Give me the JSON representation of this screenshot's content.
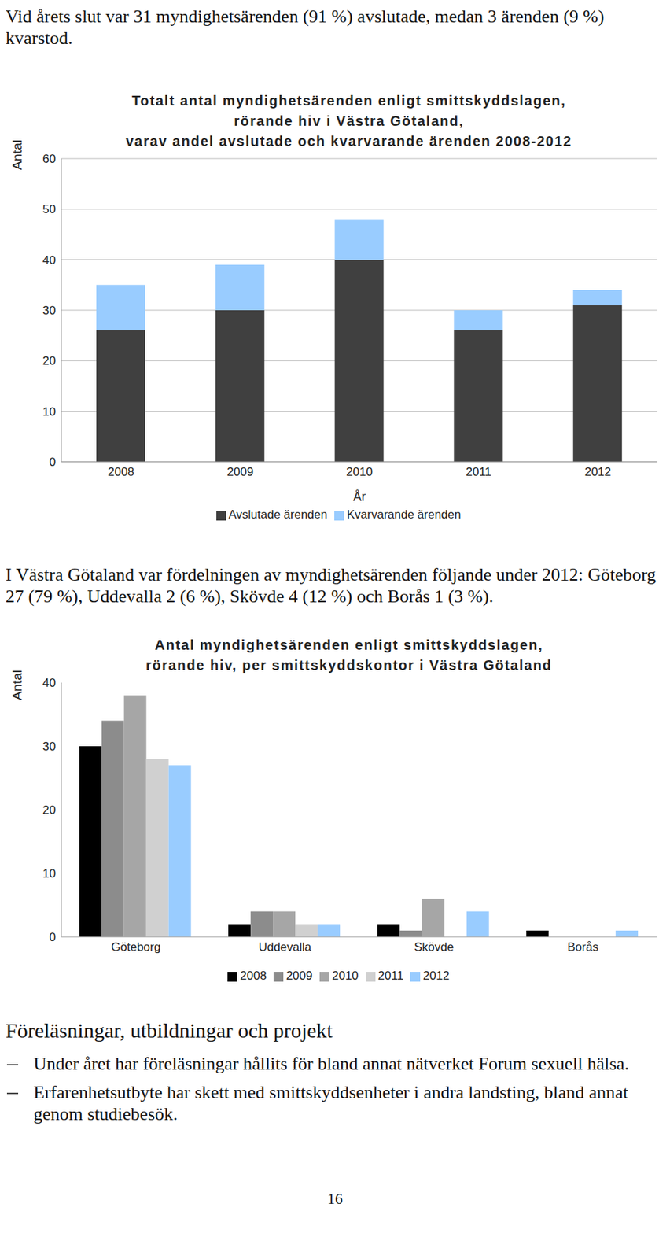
{
  "intro": "Vid årets slut var 31 myndighetsärenden (91 %) avslutade, medan 3 ärenden (9 %) kvarstod.",
  "chart_data": [
    {
      "type": "bar",
      "title": "Totalt antal myndighetsärenden enligt smittskyddslagen,\nrörande hiv i Västra Götaland,\nvarav andel avslutade och kvarvarande ärenden 2008-2012",
      "x_label": "År",
      "y_label": "Antal",
      "categories": [
        "2008",
        "2009",
        "2010",
        "2011",
        "2012"
      ],
      "series": [
        {
          "name": "Avslutade ärenden",
          "color": "#404040",
          "values": [
            26,
            30,
            40,
            26,
            31
          ]
        },
        {
          "name": "Kvarvarande ärenden",
          "color": "#99ccff",
          "values": [
            9,
            9,
            8,
            4,
            3
          ]
        }
      ],
      "stacked": true,
      "ylim": [
        0,
        60
      ],
      "yticks": [
        0,
        10,
        20,
        30,
        40,
        50,
        60
      ],
      "grid": true,
      "legend": "bottom"
    },
    {
      "type": "bar",
      "title": "Antal myndighetsärenden enligt smittskyddslagen,\nrörande hiv, per smittskyddskontor i Västra Götaland",
      "y_label": "Antal",
      "categories": [
        "Göteborg",
        "Uddevalla",
        "Skövde",
        "Borås"
      ],
      "series": [
        {
          "name": "2008",
          "color": "#000000",
          "values": [
            30,
            2,
            2,
            1
          ]
        },
        {
          "name": "2009",
          "color": "#8c8c8c",
          "values": [
            34,
            4,
            1,
            0
          ]
        },
        {
          "name": "2010",
          "color": "#a6a6a6",
          "values": [
            38,
            4,
            6,
            0
          ]
        },
        {
          "name": "2011",
          "color": "#d0d0d0",
          "values": [
            28,
            2,
            0,
            0
          ]
        },
        {
          "name": "2012",
          "color": "#99ccff",
          "values": [
            27,
            2,
            4,
            1
          ]
        }
      ],
      "stacked": false,
      "ylim": [
        0,
        40
      ],
      "yticks": [
        0,
        10,
        20,
        30,
        40
      ],
      "grid": false,
      "legend": "bottom"
    }
  ],
  "text_between": "I Västra Götaland var fördelningen av myndighetsärenden följande under 2012: Göteborg 27 (79 %), Uddevalla 2 (6 %), Skövde 4 (12 %) och Borås 1 (3 %).",
  "heading": "Föreläsningar, utbildningar och projekt",
  "bullets": [
    "Under året har föreläsningar hållits för bland annat nätverket Forum sexuell hälsa.",
    "Erfarenhetsutbyte har skett med smittskyddsenheter i andra landsting, bland annat genom studiebesök."
  ],
  "page_number": "16"
}
